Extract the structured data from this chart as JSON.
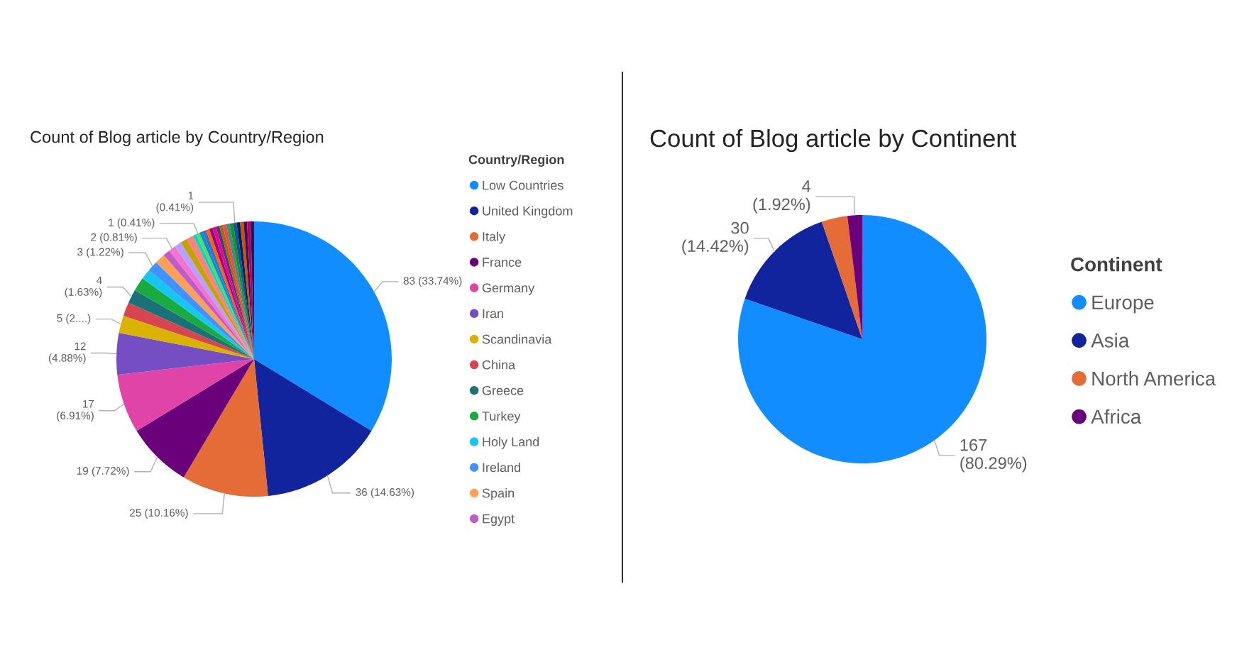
{
  "chart_data": [
    {
      "type": "pie",
      "title": "Count of Blog article by Country/Region",
      "legend_title": "Country/Region",
      "legend": "right",
      "categories": [
        "Low Countries",
        "United Kingdom",
        "Italy",
        "France",
        "Germany",
        "Iran",
        "Scandinavia",
        "China",
        "Greece",
        "Turkey",
        "Holy Land",
        "Ireland",
        "Spain",
        "Egypt",
        null,
        null,
        null,
        null,
        null,
        null,
        null,
        null,
        null,
        null,
        null,
        null,
        null,
        null,
        null,
        null,
        null,
        null,
        null,
        null,
        null,
        null
      ],
      "values": [
        83,
        36,
        25,
        19,
        17,
        12,
        5,
        4,
        4,
        4,
        3,
        3,
        3,
        2,
        2,
        2,
        2,
        2,
        1,
        1,
        1,
        1,
        1,
        1,
        1,
        1,
        1,
        1,
        1,
        1,
        1,
        1,
        1,
        1,
        1,
        1
      ],
      "colors": [
        "#118DFF",
        "#12239E",
        "#E66C37",
        "#6B007B",
        "#E044A7",
        "#744EC2",
        "#D9B300",
        "#D64550",
        "#197278",
        "#1AAB40",
        "#15C6F4",
        "#4092FF",
        "#FFA058",
        "#BE5DC9",
        "#F472D0",
        "#B5A1FF",
        "#C4A200",
        "#FF8080",
        "#00DBBC",
        "#5BD667",
        "#0091D5",
        "#4668C5",
        "#FF6300",
        "#99008A",
        "#EC008C",
        "#533285",
        "#99700A",
        "#FF4141",
        "#1F9A85",
        "#25891C",
        "#0057A2",
        "#002050",
        "#C94F0F",
        "#450F54",
        "#B60064",
        "#34124F"
      ],
      "value_labels": [
        "83 (33.74%)",
        "36 (14.63%)",
        "25 (10.16%)",
        "19 (7.72%)",
        "17\n(6.91%)",
        "12\n(4.88%)",
        "5 (2....)",
        null,
        "4\n(1.63%)",
        null,
        null,
        "3 (1.22%)",
        null,
        null,
        "2 (0.81%)",
        null,
        null,
        null,
        null,
        "1 (0.41%)",
        null,
        null,
        null,
        null,
        null,
        null,
        null,
        null,
        null,
        null,
        "1\n(0.41%)",
        null,
        null,
        null,
        null,
        null
      ]
    },
    {
      "type": "pie",
      "title": "Count of Blog article by Continent",
      "legend_title": "Continent",
      "legend": "right",
      "categories": [
        "Europe",
        "Asia",
        "North America",
        "Africa"
      ],
      "values": [
        167,
        30,
        7,
        4
      ],
      "colors": [
        "#118DFF",
        "#12239E",
        "#E66C37",
        "#6B007B"
      ],
      "value_labels": [
        "167\n(80.29%)",
        "30\n(14.42%)",
        null,
        "4\n(1.92%)"
      ]
    }
  ]
}
